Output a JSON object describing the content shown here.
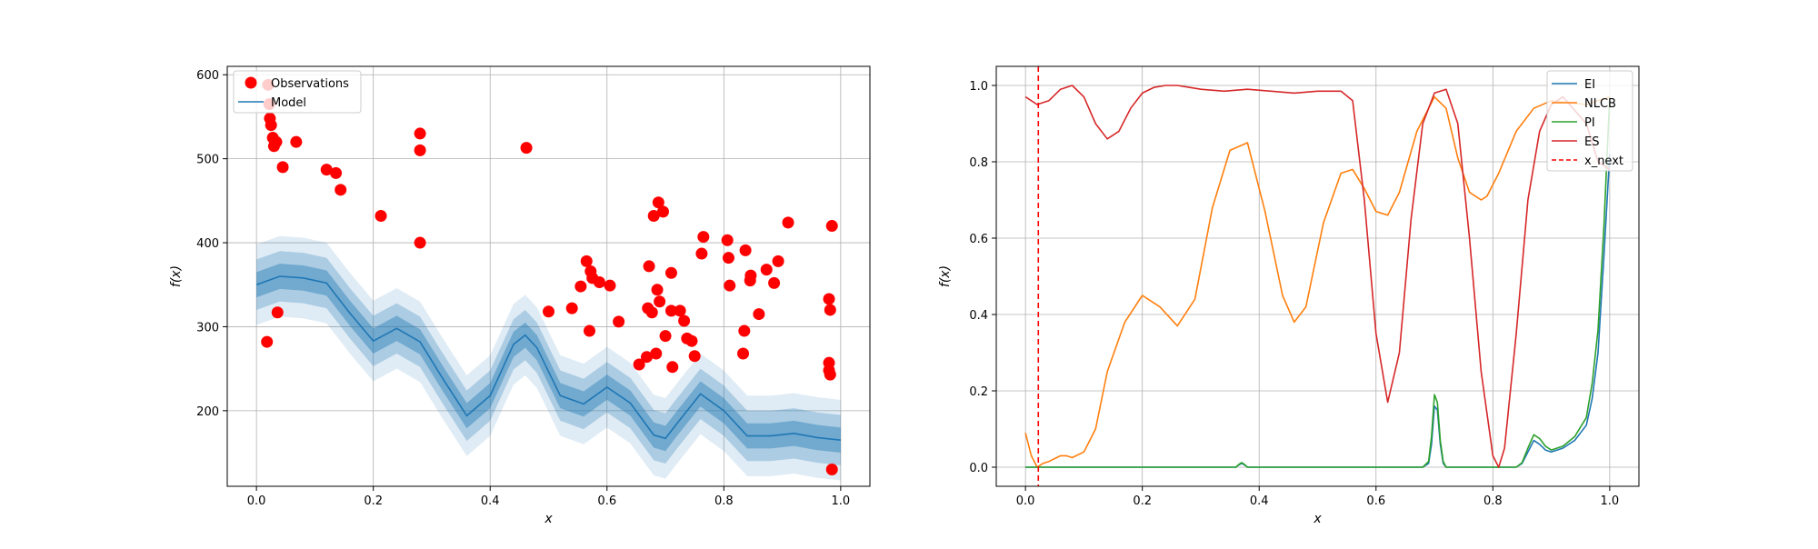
{
  "chart_data": [
    {
      "type": "scatter",
      "title": "",
      "xlabel": "x",
      "ylabel": "f(x)",
      "xlim": [
        -0.05,
        1.05
      ],
      "ylim": [
        110,
        610
      ],
      "xticks": [
        0.0,
        0.2,
        0.4,
        0.6,
        0.8,
        1.0
      ],
      "xtick_labels": [
        "0.0",
        "0.2",
        "0.4",
        "0.6",
        "0.8",
        "1.0"
      ],
      "yticks": [
        200,
        300,
        400,
        500,
        600
      ],
      "ytick_labels": [
        "200",
        "300",
        "400",
        "500",
        "600"
      ],
      "grid": true,
      "legend_position": "top-left",
      "legend": [
        "Observations",
        "Model"
      ],
      "colors": {
        "observations": "#ff0000",
        "model": "#1f77b4"
      },
      "observations": {
        "x": [
          0.02,
          0.022,
          0.023,
          0.025,
          0.028,
          0.03,
          0.018,
          0.034,
          0.036,
          0.045,
          0.068,
          0.12,
          0.136,
          0.144,
          0.213,
          0.28,
          0.28,
          0.28,
          0.462,
          0.5,
          0.54,
          0.555,
          0.565,
          0.57,
          0.572,
          0.575,
          0.587,
          0.605,
          0.62,
          0.655,
          0.668,
          0.67,
          0.672,
          0.677,
          0.68,
          0.684,
          0.686,
          0.688,
          0.69,
          0.696,
          0.7,
          0.71,
          0.71,
          0.712,
          0.725,
          0.732,
          0.737,
          0.745,
          0.75,
          0.762,
          0.765,
          0.806,
          0.808,
          0.81,
          0.833,
          0.835,
          0.837,
          0.845,
          0.846,
          0.86,
          0.873,
          0.886,
          0.893,
          0.91,
          0.98,
          0.98,
          0.98,
          0.982,
          0.982,
          0.985,
          0.985
        ],
        "y": [
          588,
          565,
          548,
          540,
          525,
          515,
          282,
          520,
          317,
          490,
          520,
          487,
          483,
          463,
          432,
          530,
          510,
          400,
          513,
          318,
          322,
          348,
          378,
          295,
          366,
          358,
          353,
          349,
          306,
          255,
          264,
          322,
          372,
          317,
          432,
          268,
          344,
          448,
          330,
          437,
          289,
          364,
          319,
          252,
          319,
          307,
          286,
          283,
          265,
          387,
          407,
          403,
          382,
          349,
          268,
          295,
          391,
          355,
          361,
          315,
          368,
          352,
          378,
          424,
          333,
          257,
          248,
          243,
          320,
          420,
          130
        ]
      },
      "model": {
        "x": [
          0,
          0.04,
          0.08,
          0.12,
          0.16,
          0.2,
          0.24,
          0.28,
          0.32,
          0.36,
          0.4,
          0.44,
          0.46,
          0.48,
          0.52,
          0.56,
          0.6,
          0.64,
          0.68,
          0.7,
          0.72,
          0.76,
          0.8,
          0.84,
          0.88,
          0.92,
          0.96,
          1.0
        ],
        "mean": [
          350,
          360,
          358,
          352,
          316,
          283,
          298,
          282,
          237,
          194,
          218,
          279,
          290,
          275,
          218,
          208,
          228,
          209,
          171,
          167,
          185,
          220,
          200,
          170,
          170,
          173,
          168,
          165
        ],
        "band_half_widths": [
          15,
          30,
          48
        ],
        "band_opacities": [
          0.75,
          0.5,
          0.25
        ]
      }
    },
    {
      "type": "line",
      "title": "",
      "xlabel": "x",
      "ylabel": "f(x)",
      "xlim": [
        -0.05,
        1.05
      ],
      "ylim": [
        -0.05,
        1.05
      ],
      "xticks": [
        0.0,
        0.2,
        0.4,
        0.6,
        0.8,
        1.0
      ],
      "xtick_labels": [
        "0.0",
        "0.2",
        "0.4",
        "0.6",
        "0.8",
        "1.0"
      ],
      "yticks": [
        0.0,
        0.2,
        0.4,
        0.6,
        0.8,
        1.0
      ],
      "ytick_labels": [
        "0.0",
        "0.2",
        "0.4",
        "0.6",
        "0.8",
        "1.0"
      ],
      "grid": true,
      "legend_position": "top-right",
      "series": [
        {
          "name": "EI",
          "color": "#1f77b4",
          "x": [
            0,
            0.36,
            0.365,
            0.37,
            0.375,
            0.38,
            0.68,
            0.69,
            0.695,
            0.7,
            0.705,
            0.71,
            0.715,
            0.72,
            0.84,
            0.85,
            0.86,
            0.87,
            0.88,
            0.89,
            0.9,
            0.92,
            0.94,
            0.96,
            0.97,
            0.98,
            0.99,
            1.0
          ],
          "y": [
            0,
            0,
            0.006,
            0.01,
            0.006,
            0,
            0,
            0.01,
            0.06,
            0.16,
            0.15,
            0.06,
            0.01,
            0,
            0,
            0.01,
            0.04,
            0.07,
            0.06,
            0.045,
            0.04,
            0.05,
            0.07,
            0.11,
            0.18,
            0.3,
            0.55,
            0.82
          ]
        },
        {
          "name": "NLCB",
          "color": "#ff7f0e",
          "x": [
            0,
            0.01,
            0.02,
            0.03,
            0.04,
            0.06,
            0.07,
            0.08,
            0.1,
            0.12,
            0.14,
            0.17,
            0.2,
            0.23,
            0.26,
            0.29,
            0.32,
            0.35,
            0.38,
            0.41,
            0.44,
            0.46,
            0.48,
            0.51,
            0.54,
            0.56,
            0.58,
            0.6,
            0.62,
            0.64,
            0.67,
            0.7,
            0.72,
            0.74,
            0.76,
            0.78,
            0.79,
            0.81,
            0.84,
            0.87,
            0.9,
            0.93,
            0.96,
            0.98,
            1.0
          ],
          "y": [
            0.09,
            0.03,
            0.0,
            0.01,
            0.015,
            0.03,
            0.03,
            0.025,
            0.04,
            0.1,
            0.25,
            0.38,
            0.45,
            0.42,
            0.37,
            0.44,
            0.68,
            0.83,
            0.85,
            0.67,
            0.45,
            0.38,
            0.42,
            0.64,
            0.77,
            0.78,
            0.73,
            0.67,
            0.66,
            0.72,
            0.88,
            0.97,
            0.94,
            0.81,
            0.72,
            0.7,
            0.71,
            0.77,
            0.88,
            0.94,
            0.96,
            0.955,
            0.95,
            0.96,
            0.97
          ]
        },
        {
          "name": "PI",
          "color": "#2ca02c",
          "x": [
            0,
            0.36,
            0.365,
            0.37,
            0.375,
            0.38,
            0.68,
            0.69,
            0.695,
            0.7,
            0.705,
            0.71,
            0.715,
            0.72,
            0.84,
            0.85,
            0.86,
            0.87,
            0.88,
            0.89,
            0.9,
            0.92,
            0.94,
            0.96,
            0.97,
            0.98,
            0.99,
            1.0
          ],
          "y": [
            0,
            0,
            0.007,
            0.012,
            0.007,
            0,
            0,
            0.015,
            0.08,
            0.19,
            0.17,
            0.07,
            0.015,
            0,
            0,
            0.012,
            0.05,
            0.085,
            0.075,
            0.055,
            0.045,
            0.055,
            0.08,
            0.13,
            0.22,
            0.36,
            0.63,
            0.97
          ]
        },
        {
          "name": "ES",
          "color": "#d62728",
          "x": [
            0,
            0.02,
            0.04,
            0.06,
            0.08,
            0.1,
            0.12,
            0.14,
            0.16,
            0.18,
            0.2,
            0.22,
            0.24,
            0.26,
            0.28,
            0.3,
            0.34,
            0.38,
            0.42,
            0.46,
            0.5,
            0.54,
            0.56,
            0.58,
            0.6,
            0.62,
            0.64,
            0.66,
            0.68,
            0.7,
            0.72,
            0.74,
            0.76,
            0.78,
            0.8,
            0.81,
            0.82,
            0.84,
            0.86,
            0.88,
            0.9,
            0.92,
            0.96,
            0.98,
            1.0
          ],
          "y": [
            0.97,
            0.95,
            0.96,
            0.99,
            1.0,
            0.97,
            0.9,
            0.86,
            0.88,
            0.94,
            0.98,
            0.995,
            1.0,
            1.0,
            0.995,
            0.99,
            0.985,
            0.99,
            0.985,
            0.98,
            0.985,
            0.985,
            0.96,
            0.7,
            0.35,
            0.17,
            0.3,
            0.65,
            0.9,
            0.98,
            0.99,
            0.9,
            0.6,
            0.25,
            0.03,
            0.0,
            0.05,
            0.35,
            0.7,
            0.88,
            0.95,
            0.97,
            0.9,
            0.8,
            0.78
          ]
        }
      ],
      "x_next": {
        "name": "x_next",
        "x": 0.022,
        "color": "#ff0000"
      },
      "legend": [
        "EI",
        "NLCB",
        "PI",
        "ES",
        "x_next"
      ]
    }
  ]
}
